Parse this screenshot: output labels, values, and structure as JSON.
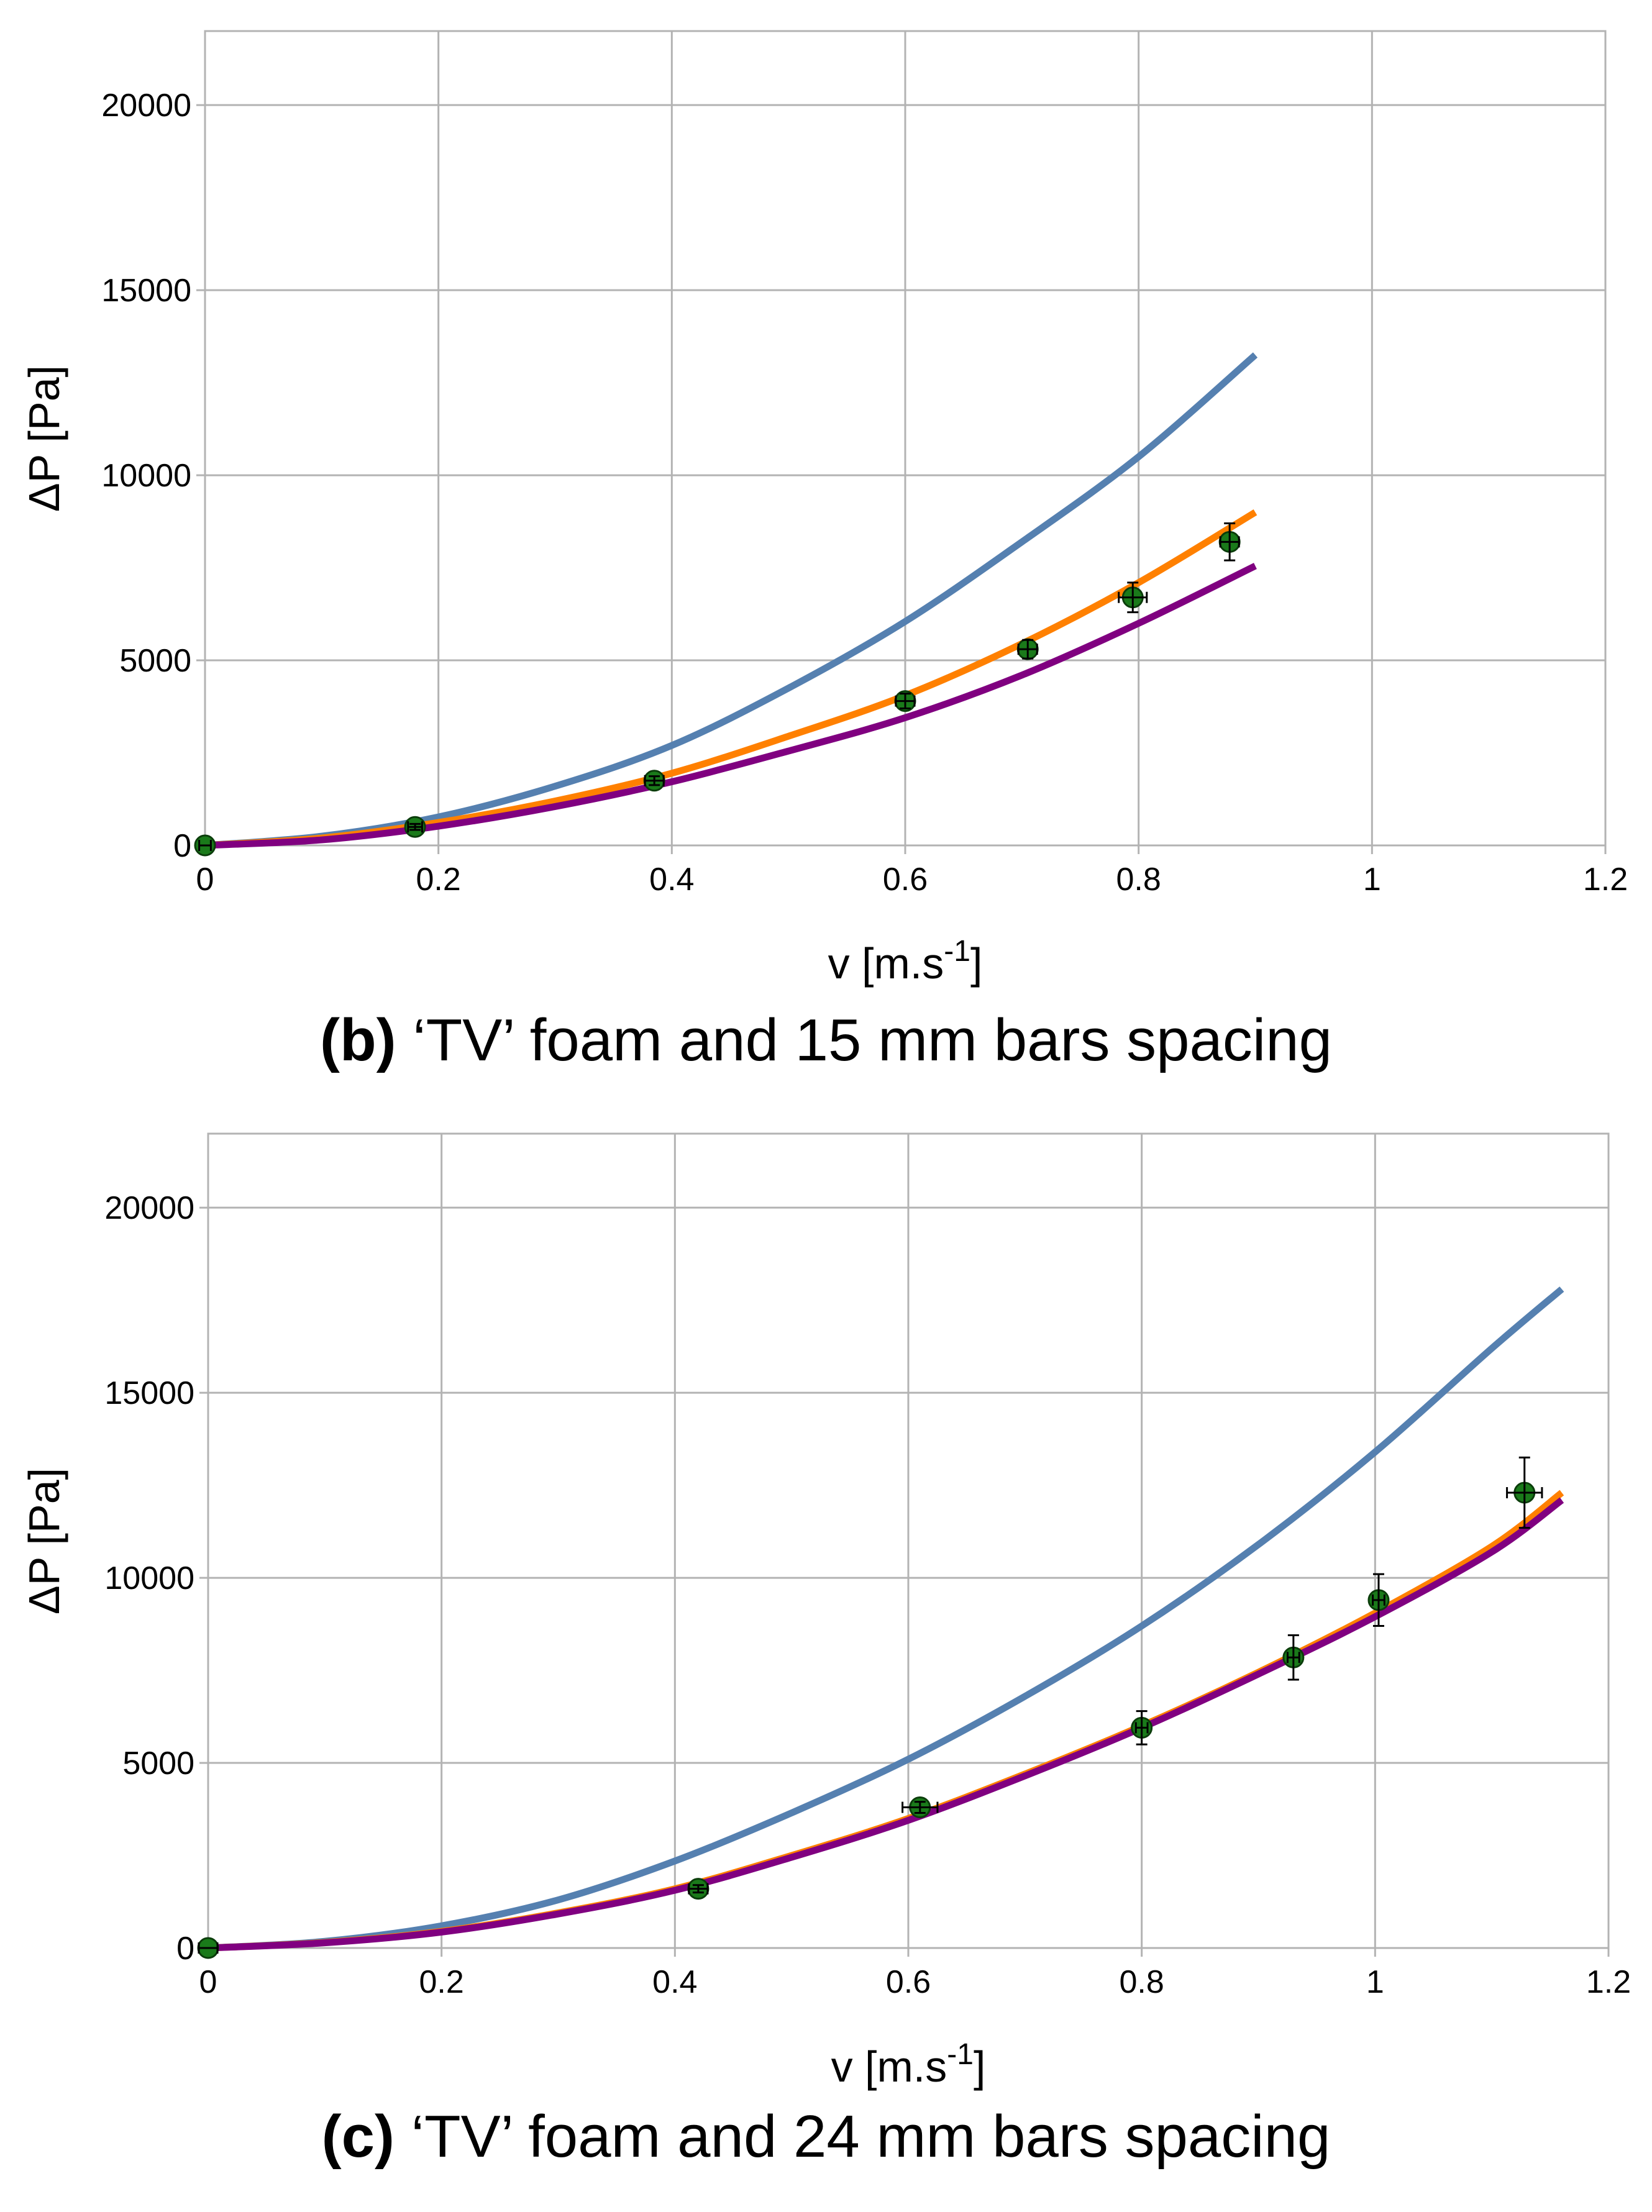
{
  "chart_data": [
    {
      "type": "line",
      "panel": "b",
      "caption_label": "(b)",
      "caption_text": " ‘TV’ foam and 15 mm bars spacing",
      "xlabel_main": "v [m.s",
      "xlabel_sup": "-1",
      "xlabel_end": "]",
      "ylabel": "ΔP [Pa]",
      "xlim": [
        0,
        1.2
      ],
      "ylim": [
        0,
        22000
      ],
      "grid": true,
      "x_ticks": [
        0,
        0.2,
        0.4,
        0.6,
        0.8,
        1,
        1.2
      ],
      "x_tick_labels": [
        "0",
        "0.2",
        "0.4",
        "0.6",
        "0.8",
        "1",
        "1.2"
      ],
      "y_ticks": [
        0,
        5000,
        10000,
        15000,
        20000
      ],
      "y_tick_labels": [
        "0",
        "5000",
        "10000",
        "15000",
        "20000"
      ],
      "series": [
        {
          "name": "model-blue",
          "kind": "curve",
          "color": "#5580b0",
          "x": [
            0,
            0.1,
            0.2,
            0.3,
            0.4,
            0.5,
            0.6,
            0.7,
            0.8,
            0.9
          ],
          "values": [
            0,
            250,
            770,
            1600,
            2700,
            4250,
            6050,
            8200,
            10500,
            13250
          ]
        },
        {
          "name": "model-orange",
          "kind": "curve",
          "color": "#ff8000",
          "x": [
            0,
            0.1,
            0.2,
            0.3,
            0.4,
            0.5,
            0.6,
            0.7,
            0.8,
            0.9
          ],
          "values": [
            0,
            200,
            620,
            1200,
            1950,
            2950,
            4050,
            5450,
            7100,
            9000
          ]
        },
        {
          "name": "model-purple",
          "kind": "curve",
          "color": "#800080",
          "x": [
            0,
            0.1,
            0.2,
            0.3,
            0.4,
            0.5,
            0.6,
            0.7,
            0.8,
            0.9
          ],
          "values": [
            0,
            150,
            520,
            1050,
            1720,
            2550,
            3450,
            4600,
            6000,
            7550
          ]
        },
        {
          "name": "measurements",
          "kind": "points",
          "color": "#1a7a1a",
          "x": [
            0,
            0.18,
            0.385,
            0.6,
            0.705,
            0.795,
            0.878
          ],
          "values": [
            0,
            500,
            1750,
            3900,
            5300,
            6700,
            8200
          ],
          "xerr": [
            0.005,
            0.006,
            0.008,
            0.008,
            0.008,
            0.012,
            0.008
          ],
          "yerr": [
            0,
            80,
            120,
            200,
            250,
            400,
            500
          ]
        }
      ]
    },
    {
      "type": "line",
      "panel": "c",
      "caption_label": "(c)",
      "caption_text": " ‘TV’ foam and 24 mm bars spacing",
      "xlabel_main": "v [m.s",
      "xlabel_sup": "-1",
      "xlabel_end": "]",
      "ylabel": "ΔP [Pa]",
      "xlim": [
        0,
        1.2
      ],
      "ylim": [
        0,
        22000
      ],
      "grid": true,
      "x_ticks": [
        0,
        0.2,
        0.4,
        0.6,
        0.8,
        1,
        1.2
      ],
      "x_tick_labels": [
        "0",
        "0.2",
        "0.4",
        "0.6",
        "0.8",
        "1",
        "1.2"
      ],
      "y_ticks": [
        0,
        5000,
        10000,
        15000,
        20000
      ],
      "y_tick_labels": [
        "0",
        "5000",
        "10000",
        "15000",
        "20000"
      ],
      "series": [
        {
          "name": "model-blue",
          "kind": "curve",
          "color": "#5580b0",
          "x": [
            0,
            0.1,
            0.2,
            0.3,
            0.4,
            0.5,
            0.6,
            0.7,
            0.8,
            0.9,
            1.0,
            1.1,
            1.16
          ],
          "values": [
            0,
            180,
            600,
            1300,
            2350,
            3650,
            5100,
            6800,
            8700,
            10900,
            13400,
            16200,
            17800
          ]
        },
        {
          "name": "model-orange",
          "kind": "curve",
          "color": "#ff8000",
          "x": [
            0,
            0.1,
            0.2,
            0.3,
            0.4,
            0.5,
            0.6,
            0.7,
            0.8,
            0.9,
            1.0,
            1.1,
            1.16
          ],
          "values": [
            0,
            150,
            450,
            950,
            1600,
            2500,
            3500,
            4700,
            6000,
            7450,
            9050,
            10850,
            12300
          ]
        },
        {
          "name": "model-purple",
          "kind": "curve",
          "color": "#800080",
          "x": [
            0,
            0.1,
            0.2,
            0.3,
            0.4,
            0.5,
            0.6,
            0.7,
            0.8,
            0.9,
            1.0,
            1.1,
            1.16
          ],
          "values": [
            0,
            140,
            430,
            920,
            1560,
            2450,
            3450,
            4650,
            5950,
            7400,
            8950,
            10700,
            12100
          ]
        },
        {
          "name": "measurements",
          "kind": "points",
          "color": "#1a7a1a",
          "x": [
            0,
            0.42,
            0.61,
            0.8,
            0.93,
            1.003,
            1.128
          ],
          "values": [
            0,
            1600,
            3800,
            5950,
            7850,
            9400,
            12300
          ],
          "xerr": [
            0.008,
            0.008,
            0.015,
            0.005,
            0.005,
            0.005,
            0.015
          ],
          "yerr": [
            0,
            100,
            150,
            450,
            600,
            700,
            950
          ]
        }
      ]
    }
  ]
}
